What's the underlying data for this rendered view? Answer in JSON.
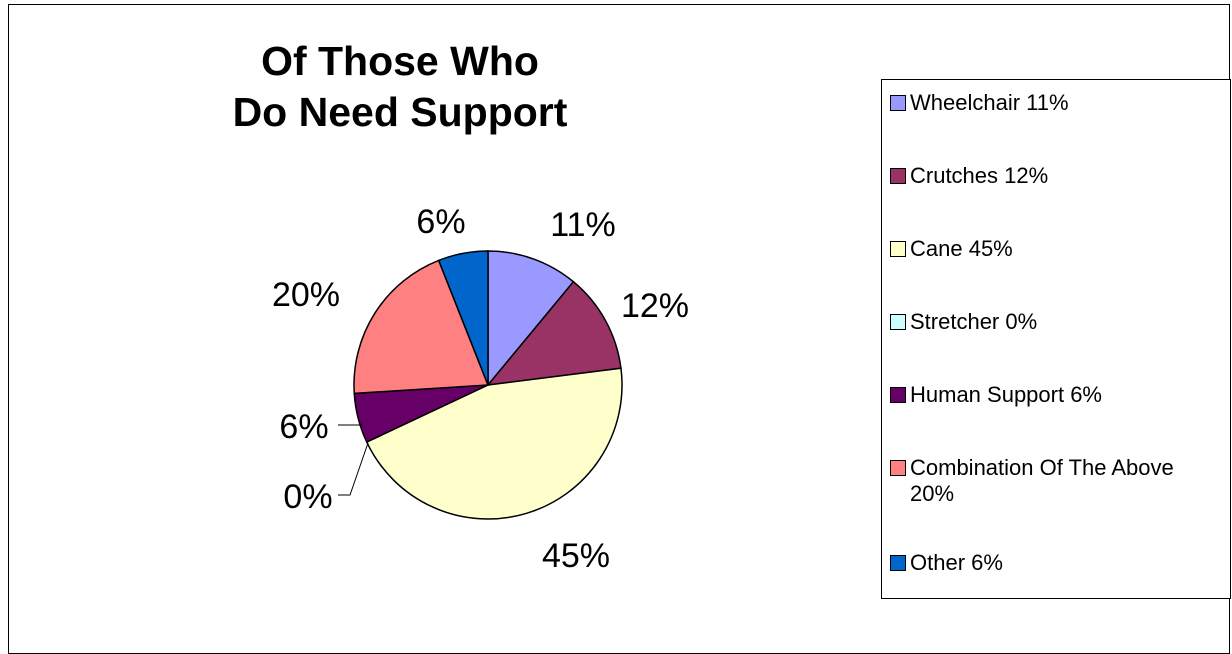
{
  "chart_data": {
    "type": "pie",
    "title_lines": [
      "Of Those Who",
      "Do Need Support"
    ],
    "slices": [
      {
        "name": "Wheelchair",
        "value": 11,
        "label": "11%",
        "legend": "Wheelchair 11%",
        "color": "#9999FF"
      },
      {
        "name": "Crutches",
        "value": 12,
        "label": "12%",
        "legend": "Crutches 12%",
        "color": "#993366"
      },
      {
        "name": "Cane",
        "value": 45,
        "label": "45%",
        "legend": "Cane 45%",
        "color": "#FFFFCC"
      },
      {
        "name": "Stretcher",
        "value": 0,
        "label": "0%",
        "legend": "Stretcher 0%",
        "color": "#CCFFFF"
      },
      {
        "name": "Human Support",
        "value": 6,
        "label": "6%",
        "legend": "Human Support 6%",
        "color": "#660066"
      },
      {
        "name": "Combination Of The Above",
        "value": 20,
        "label": "20%",
        "legend": "Combination Of The Above 20%",
        "color": "#FF8080"
      },
      {
        "name": "Other",
        "value": 6,
        "label": "6%",
        "legend": "Other 6%",
        "color": "#0066CC"
      }
    ],
    "legend_position": "right",
    "start": "12 o'clock, clockwise"
  }
}
